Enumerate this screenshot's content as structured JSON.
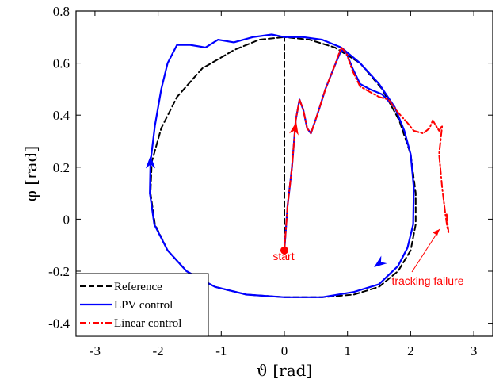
{
  "chart_data": {
    "type": "line",
    "xlabel": "ϑ [rad]",
    "ylabel": "φ [rad]",
    "xlim": [
      -3.3,
      3.3
    ],
    "ylim": [
      -0.45,
      0.8
    ],
    "xticks": [
      -3,
      -2,
      -1,
      0,
      1,
      2,
      3
    ],
    "yticks": [
      -0.4,
      -0.2,
      0,
      0.2,
      0.4,
      0.6,
      0.8
    ],
    "xtick_labels": [
      "-3",
      "-2",
      "-1",
      "0",
      "1",
      "2",
      "3"
    ],
    "ytick_labels": [
      "-0.4",
      "-0.2",
      "0",
      "0.2",
      "0.4",
      "0.6",
      "0.8"
    ],
    "grid": false,
    "legend_position": "bottom-left",
    "series": [
      {
        "name": "Reference",
        "color": "#000000",
        "style": "dashed",
        "points": [
          [
            0.0,
            -0.12
          ],
          [
            0.0,
            0.7
          ],
          [
            0.4,
            0.69
          ],
          [
            0.8,
            0.66
          ],
          [
            1.2,
            0.6
          ],
          [
            1.55,
            0.5
          ],
          [
            1.82,
            0.38
          ],
          [
            2.0,
            0.25
          ],
          [
            2.08,
            0.1
          ],
          [
            2.08,
            -0.02
          ],
          [
            2.0,
            -0.12
          ],
          [
            1.8,
            -0.2
          ],
          [
            1.5,
            -0.26
          ],
          [
            1.1,
            -0.29
          ],
          [
            0.6,
            -0.3
          ],
          [
            0.0,
            -0.3
          ],
          [
            -0.6,
            -0.29
          ],
          [
            -1.1,
            -0.26
          ],
          [
            -1.55,
            -0.2
          ],
          [
            -1.85,
            -0.12
          ],
          [
            -2.05,
            -0.02
          ],
          [
            -2.12,
            0.1
          ],
          [
            -2.1,
            0.22
          ],
          [
            -1.95,
            0.35
          ],
          [
            -1.7,
            0.47
          ],
          [
            -1.3,
            0.58
          ],
          [
            -0.8,
            0.65
          ],
          [
            -0.4,
            0.69
          ],
          [
            0.0,
            0.7
          ]
        ]
      },
      {
        "name": "LPV control",
        "color": "#0000ff",
        "style": "solid",
        "points": [
          [
            0.0,
            -0.12
          ],
          [
            0.05,
            0.05
          ],
          [
            0.12,
            0.2
          ],
          [
            0.18,
            0.38
          ],
          [
            0.24,
            0.46
          ],
          [
            0.3,
            0.42
          ],
          [
            0.36,
            0.35
          ],
          [
            0.42,
            0.33
          ],
          [
            0.52,
            0.4
          ],
          [
            0.65,
            0.5
          ],
          [
            0.78,
            0.58
          ],
          [
            0.9,
            0.65
          ],
          [
            0.98,
            0.64
          ],
          [
            1.08,
            0.58
          ],
          [
            1.2,
            0.52
          ],
          [
            1.35,
            0.5
          ],
          [
            1.55,
            0.48
          ],
          [
            1.75,
            0.43
          ],
          [
            1.9,
            0.34
          ],
          [
            2.0,
            0.25
          ],
          [
            2.05,
            0.12
          ],
          [
            2.04,
            -0.02
          ],
          [
            1.95,
            -0.11
          ],
          [
            1.8,
            -0.18
          ],
          [
            1.5,
            -0.25
          ],
          [
            1.1,
            -0.28
          ],
          [
            0.6,
            -0.3
          ],
          [
            0.0,
            -0.3
          ],
          [
            -0.6,
            -0.29
          ],
          [
            -1.1,
            -0.26
          ],
          [
            -1.55,
            -0.2
          ],
          [
            -1.85,
            -0.12
          ],
          [
            -2.06,
            -0.02
          ],
          [
            -2.13,
            0.1
          ],
          [
            -2.12,
            0.22
          ],
          [
            -2.05,
            0.36
          ],
          [
            -1.95,
            0.5
          ],
          [
            -1.85,
            0.6
          ],
          [
            -1.7,
            0.67
          ],
          [
            -1.5,
            0.67
          ],
          [
            -1.25,
            0.66
          ],
          [
            -1.05,
            0.69
          ],
          [
            -0.8,
            0.68
          ],
          [
            -0.5,
            0.7
          ],
          [
            -0.2,
            0.71
          ],
          [
            0.0,
            0.7
          ],
          [
            0.3,
            0.7
          ],
          [
            0.6,
            0.69
          ],
          [
            0.9,
            0.66
          ],
          [
            1.2,
            0.6
          ],
          [
            1.5,
            0.52
          ],
          [
            1.75,
            0.43
          ]
        ]
      },
      {
        "name": "Linear control",
        "color": "#ff0000",
        "style": "dashdot",
        "points": [
          [
            0.0,
            -0.12
          ],
          [
            0.05,
            0.05
          ],
          [
            0.12,
            0.2
          ],
          [
            0.18,
            0.38
          ],
          [
            0.24,
            0.46
          ],
          [
            0.3,
            0.42
          ],
          [
            0.36,
            0.35
          ],
          [
            0.42,
            0.33
          ],
          [
            0.52,
            0.4
          ],
          [
            0.65,
            0.5
          ],
          [
            0.78,
            0.58
          ],
          [
            0.9,
            0.66
          ],
          [
            0.98,
            0.64
          ],
          [
            1.08,
            0.57
          ],
          [
            1.2,
            0.51
          ],
          [
            1.35,
            0.49
          ],
          [
            1.5,
            0.47
          ],
          [
            1.65,
            0.46
          ],
          [
            1.8,
            0.41
          ],
          [
            1.95,
            0.37
          ],
          [
            2.05,
            0.34
          ],
          [
            2.2,
            0.33
          ],
          [
            2.3,
            0.35
          ],
          [
            2.35,
            0.38
          ],
          [
            2.45,
            0.34
          ],
          [
            2.5,
            0.36
          ],
          [
            2.45,
            0.25
          ],
          [
            2.5,
            0.12
          ],
          [
            2.55,
            0.02
          ],
          [
            2.58,
            -0.03
          ],
          [
            2.6,
            -0.05
          ],
          [
            2.57,
            0.02
          ]
        ]
      }
    ],
    "annotations": [
      {
        "text": "start",
        "x": 0.0,
        "y": -0.12,
        "color": "#ff0000"
      },
      {
        "text": "tracking failure",
        "x": 2.57,
        "y": -0.05,
        "color": "#ff0000"
      }
    ]
  }
}
